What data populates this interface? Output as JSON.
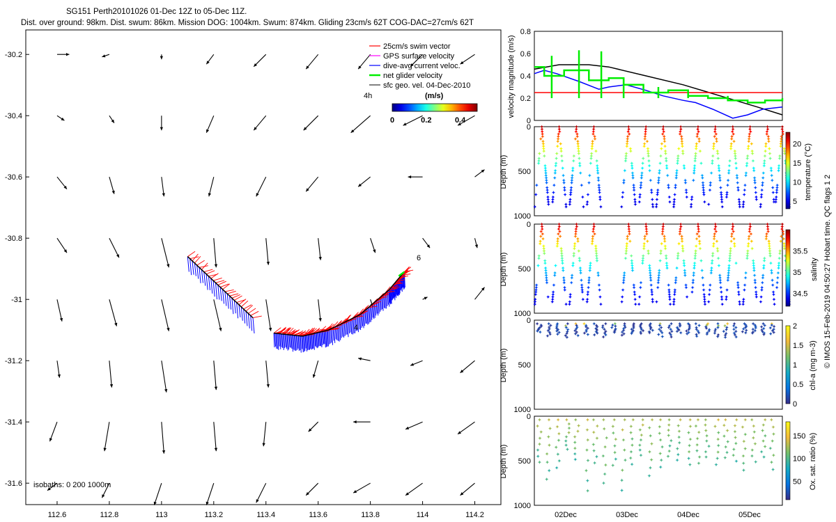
{
  "header": {
    "title": "SG151 Perth20101026 01-Dec 12Z to 05-Dec 11Z.",
    "subtitle": "Dist. over ground: 98km. Dist. swum: 86km. Mission DOG: 1004km. Swum: 874km. Gliding 23cm/s 62T COG-DAC=27cm/s 62T"
  },
  "colors": {
    "swim_vector": "#ff0000",
    "gps_velocity": "#ff00ff",
    "dive_avg_current": "#0000ff",
    "net_glider_velocity": "#00ee00",
    "sfc_geo_velocity": "#000000"
  },
  "chart_data": [
    {
      "id": "map",
      "type": "quiver-map",
      "x_ticks": [
        "112.6",
        "112.8",
        "113",
        "113.2",
        "113.4",
        "113.6",
        "113.8",
        "114",
        "114.2"
      ],
      "y_ticks": [
        "-30.2",
        "-30.4",
        "-30.6",
        "-30.8",
        "-31",
        "-31.2",
        "-31.4",
        "-31.6"
      ],
      "xlim": [
        112.48,
        114.3
      ],
      "ylim": [
        -31.67,
        -30.12
      ],
      "legend": [
        {
          "label": "25cm/s swim vector",
          "color": "#ff0000"
        },
        {
          "label": "GPS surface velocity",
          "color": "#ff00ff"
        },
        {
          "label": "dive-avg current veloc.",
          "color": "#0000ff"
        },
        {
          "label": "net glider velocity",
          "color": "#00ee00"
        },
        {
          "label": "sfc geo. vel. 04-Dec-2010",
          "color": "#000000"
        }
      ],
      "colorbar": {
        "label": "(m/s)",
        "ticks": [
          "0",
          "0.2",
          "0.4"
        ],
        "range": [
          0,
          0.5
        ]
      },
      "inset_label": "4h",
      "isobaths_label": "isobaths: 0   200  1000m",
      "track_labels": [
        {
          "text": "6",
          "lon": 113.92,
          "lat": -30.88
        },
        {
          "text": "4",
          "lon": 113.69,
          "lat": -31.11
        }
      ],
      "geostrophic_grid": {
        "lons": [
          112.6,
          112.8,
          113.0,
          113.2,
          113.4,
          113.6,
          113.8,
          114.0,
          114.2
        ],
        "lats": [
          -30.2,
          -30.4,
          -30.6,
          -30.8,
          -31.0,
          -31.2,
          -31.4,
          -31.6
        ],
        "vectors": [
          [
            [
              0.05,
              0
            ],
            [
              -0.03,
              -0.01
            ],
            [
              0,
              -0.02
            ],
            [
              -0.03,
              -0.04
            ],
            [
              -0.05,
              -0.05
            ],
            [
              -0.05,
              -0.06
            ],
            [
              -0.05,
              -0.06
            ],
            [
              -0.05,
              -0.05
            ],
            [
              -0.06,
              -0.04
            ]
          ],
          [
            [
              0.03,
              -0.02
            ],
            [
              0.02,
              -0.03
            ],
            [
              0,
              -0.06
            ],
            [
              -0.03,
              -0.07
            ],
            [
              -0.05,
              -0.06
            ],
            [
              -0.06,
              -0.06
            ],
            [
              -0.08,
              -0.07
            ],
            [
              -0.08,
              -0.04
            ],
            [
              -0.07,
              -0.04
            ]
          ],
          [
            [
              0.04,
              -0.05
            ],
            [
              0.02,
              -0.07
            ],
            [
              0.01,
              -0.08
            ],
            [
              -0.02,
              -0.08
            ],
            [
              -0.04,
              -0.08
            ],
            [
              -0.05,
              -0.06
            ],
            [
              -0.05,
              -0.04
            ],
            [
              -0.06,
              0
            ],
            [
              0.04,
              0.03
            ]
          ],
          [
            [
              0.04,
              -0.06
            ],
            [
              0.04,
              -0.08
            ],
            [
              0.03,
              -0.12
            ],
            [
              0.01,
              -0.12
            ],
            [
              0.01,
              -0.11
            ],
            [
              0.01,
              -0.09
            ],
            [
              0.02,
              -0.06
            ],
            [
              0.03,
              -0.04
            ],
            [
              0.01,
              -0.04
            ]
          ],
          [
            [
              0.02,
              -0.09
            ],
            [
              0.03,
              -0.11
            ],
            [
              0.03,
              -0.13
            ],
            [
              0.03,
              -0.13
            ],
            [
              0.02,
              -0.13
            ],
            [
              0.01,
              -0.09
            ],
            [
              0.01,
              -0.03
            ],
            [
              0.02,
              0.01
            ],
            [
              0.04,
              0.05
            ]
          ],
          [
            [
              0.01,
              -0.07
            ],
            [
              0.01,
              -0.11
            ],
            [
              0.02,
              -0.13
            ],
            [
              0.01,
              -0.12
            ],
            [
              0.01,
              -0.11
            ],
            [
              -0.02,
              -0.07
            ],
            [
              -0.05,
              0.01
            ],
            [
              -0.05,
              -0.02
            ],
            [
              -0.06,
              -0.05
            ]
          ],
          [
            [
              -0.03,
              -0.08
            ],
            [
              -0.02,
              -0.12
            ],
            [
              0.01,
              -0.13
            ],
            [
              0.01,
              -0.12
            ],
            [
              -0.01,
              -0.1
            ],
            [
              -0.04,
              -0.04
            ],
            [
              -0.07,
              0
            ],
            [
              -0.07,
              -0.03
            ],
            [
              -0.07,
              -0.05
            ]
          ],
          [
            [
              -0.04,
              -0.03
            ],
            [
              -0.03,
              -0.06
            ],
            [
              -0.03,
              -0.09
            ],
            [
              -0.03,
              -0.09
            ],
            [
              -0.04,
              -0.08
            ],
            [
              -0.05,
              -0.05
            ],
            [
              -0.07,
              -0.04
            ],
            [
              -0.07,
              -0.05
            ],
            [
              -0.06,
              -0.05
            ]
          ]
        ]
      },
      "track": {
        "legs": [
          {
            "lons": [
              113.1,
              113.35
            ],
            "lats": [
              -30.86,
              -31.06
            ]
          },
          {
            "lons": [
              113.43,
              113.54,
              113.64,
              113.76,
              113.87,
              113.93
            ],
            "lats": [
              -31.11,
              -31.12,
              -31.1,
              -31.05,
              -30.97,
              -30.91
            ]
          }
        ]
      }
    },
    {
      "id": "velocity",
      "type": "line",
      "ylabel": "velocity magnitude (m/s)",
      "ylim": [
        0,
        0.8
      ],
      "y_ticks": [
        "0",
        "0.2",
        "0.4",
        "0.6",
        "0.8"
      ],
      "series": [
        {
          "name": "geostrophic",
          "color": "#000000",
          "x": [
            0,
            0.1,
            0.22,
            0.3,
            0.45,
            0.6,
            0.75,
            0.9,
            1.0
          ],
          "y": [
            0.46,
            0.5,
            0.5,
            0.48,
            0.4,
            0.32,
            0.22,
            0.12,
            0.05
          ]
        },
        {
          "name": "dive-avg current",
          "color": "#0000ff",
          "x": [
            0,
            0.04,
            0.09,
            0.18,
            0.26,
            0.3,
            0.37,
            0.45,
            0.52,
            0.6,
            0.65,
            0.72,
            0.8,
            0.86,
            0.92,
            1.0
          ],
          "y": [
            0.42,
            0.45,
            0.42,
            0.35,
            0.28,
            0.3,
            0.32,
            0.27,
            0.22,
            0.18,
            0.16,
            0.1,
            0.02,
            0.05,
            0.1,
            0.12
          ]
        },
        {
          "name": "swim 25cm/s",
          "color": "#ff0000",
          "x": [
            0,
            0.3,
            0.34,
            1.0
          ],
          "y": [
            0.25,
            0.25,
            0.25,
            0.25
          ]
        },
        {
          "name": "net glider",
          "color": "#00ee00",
          "step": true,
          "x": [
            0,
            0.04,
            0.12,
            0.22,
            0.3,
            0.36,
            0.44,
            0.54,
            0.62,
            0.7,
            0.78,
            0.86,
            0.93,
            1.0
          ],
          "y": [
            0.48,
            0.4,
            0.45,
            0.36,
            0.38,
            0.32,
            0.25,
            0.27,
            0.22,
            0.2,
            0.18,
            0.16,
            0.18,
            0.2
          ],
          "spikes": [
            [
              0.07,
              0.58
            ],
            [
              0.18,
              0.63
            ],
            [
              0.27,
              0.62
            ],
            [
              0.36,
              0.38
            ],
            [
              0.5,
              0.3
            ],
            [
              0.62,
              0.24
            ],
            [
              0.7,
              0.22
            ],
            [
              0.78,
              0.22
            ],
            [
              0.84,
              0.2
            ]
          ]
        }
      ]
    },
    {
      "id": "temperature",
      "type": "scatter",
      "ylabel": "Depth (m)",
      "cbar_label": "temperature (°C)",
      "cbar_ticks": [
        "5",
        "10",
        "15",
        "20"
      ],
      "cbar_range": [
        3,
        23
      ],
      "colormap": "jet",
      "ylim": [
        0,
        1000
      ],
      "y_ticks": [
        "0",
        "500",
        "1000"
      ],
      "profiles": {
        "max_depth": 900,
        "surface_value": 22,
        "deep_value": 5,
        "cycles_x": [
          0.03,
          0.1,
          0.17,
          0.24,
          0.31,
          0.38,
          0.45,
          0.52,
          0.59,
          0.66,
          0.73,
          0.8,
          0.87,
          0.94,
          1.0
        ],
        "gap": [
          0.24,
          0.37
        ]
      }
    },
    {
      "id": "salinity",
      "type": "scatter",
      "ylabel": "Depth (m)",
      "cbar_label": "salinity",
      "cbar_ticks": [
        "34.5",
        "35",
        "35.5"
      ],
      "cbar_range": [
        34.2,
        36.0
      ],
      "colormap": "jet",
      "ylim": [
        0,
        1000
      ],
      "y_ticks": [
        "0",
        "500",
        "1000"
      ],
      "profiles": {
        "max_depth": 900,
        "surface_value": 35.9,
        "deep_value": 34.4,
        "cycles_x": [
          0.03,
          0.1,
          0.17,
          0.24,
          0.31,
          0.38,
          0.45,
          0.52,
          0.59,
          0.66,
          0.73,
          0.8,
          0.87,
          0.94,
          1.0
        ],
        "gap": [
          0.24,
          0.37
        ]
      }
    },
    {
      "id": "chla",
      "type": "scatter",
      "ylabel": "Depth (m)",
      "cbar_label": "chl-a (mg m-3)",
      "cbar_ticks": [
        "0",
        "0.5",
        "1",
        "1.5",
        "2"
      ],
      "cbar_range": [
        0,
        2
      ],
      "colormap": "parula",
      "ylim": [
        0,
        1000
      ],
      "y_ticks": [
        "0",
        "500",
        "1000"
      ],
      "profiles": {
        "max_depth": 260,
        "surface_value": 0.3,
        "deep_value": 0.05
      }
    },
    {
      "id": "oxygen",
      "type": "scatter",
      "ylabel": "Depth (m)",
      "cbar_label": "Ox. sat. ratio (%)",
      "cbar_ticks": [
        "50",
        "100",
        "150"
      ],
      "cbar_range": [
        10,
        180
      ],
      "colormap": "parula",
      "ylim": [
        0,
        1000
      ],
      "y_ticks": [
        "0",
        "500",
        "1000"
      ],
      "profiles": {
        "max_depth": 900,
        "surface_value": 120,
        "deep_value": 80
      }
    }
  ],
  "time_axis": {
    "ticks": [
      "02Dec",
      "03Dec",
      "04Dec",
      "05Dec"
    ]
  },
  "credit": "© IMOS 15-Feb-2019 04:50:27 Hobart time. QC flags 1  2"
}
